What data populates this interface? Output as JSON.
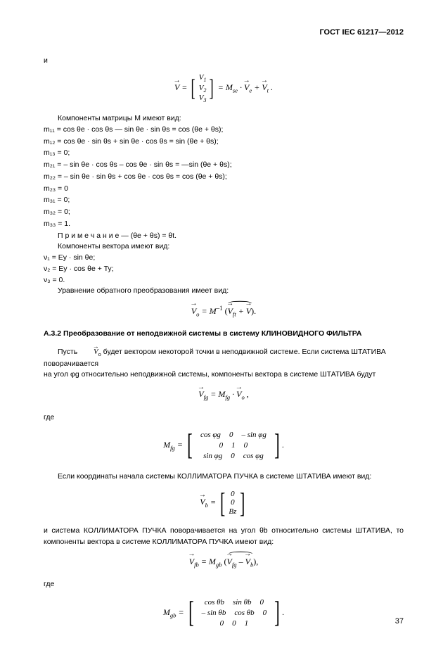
{
  "header": {
    "std": "ГОСТ IEC 61217—2012"
  },
  "intro_and": "и",
  "eq_v": {
    "lhs_var": "V",
    "v1": "V",
    "v1_sub": "1",
    "v2": "V",
    "v2_sub": "2",
    "v3": "V",
    "v3_sub": "3",
    "rhs": " = M",
    "rhs_sub": "se",
    "rhs2": " · ",
    "ve": "V",
    "ve_sub": "e",
    "plus": " + ",
    "vt": "V",
    "vt_sub": "t",
    "dot": " ."
  },
  "matrix_intro": "Компоненты матрицы М имеют вид:",
  "m": {
    "m11": "m₁₁ = cos θe · cos θs — sin θe · sin θs = cos (θe + θs);",
    "m12": "m₁₂ = cos θe · sin θs + sin θe · cos θs = sin (θe + θs);",
    "m13": "m₁₃ = 0;",
    "m21": "m₂₁ = – sin θe · cos θs – cos θe · sin θs = —sin (θe + θs);",
    "m22": "m₂₂ = – sin θe · sin θs + cos θe · cos θs = cos (θe + θs);",
    "m23": "m₂₃ = 0",
    "m31": "m₃₁ = 0;",
    "m32": "m₃₂ = 0;",
    "m33": "m₃₃ = 1."
  },
  "note": "П р и м е ч а н и е — (θe + θs) = θt.",
  "vec_intro": "Компоненты вектора имеют вид:",
  "nu": {
    "n1": "ν₁ = Ey · sin θe;",
    "n2": "ν₂ = Ey · cos θe + Ty;",
    "n3": "ν₃ = 0."
  },
  "inverse_intro": "Уравнение обратного преобразования имеет вид:",
  "eq_inverse": {
    "vo": "V",
    "vo_sub": "o",
    "eq": " = M",
    "exp": "–1",
    "lpar": "(",
    "vft": "V",
    "vft_sub": "ft",
    "plus": " + ",
    "vv": "V",
    "rpar": ")."
  },
  "section_heading": "А.3.2 Преобразование от неподвижной системы в систему КЛИНОВИДНОГО ФИЛЬТРА",
  "para1a": "Пусть ",
  "para1_vec": "V",
  "para1_vec_sub": "o",
  "para1b": " будет вектором некоторой точки в неподвижной системе. Если система ШТАТИВА поворачивается",
  "para1c": "на угол φg относительно неподвижной системы, компоненты вектора в системе ШТАТИВА будут",
  "eq_vfg": {
    "v": "V",
    "v_sub": "fg",
    "eq": " = M",
    "m_sub": "fg",
    "dot": " · ",
    "vo": "V",
    "vo_sub": "o",
    "comma": " ,"
  },
  "where": "где",
  "matrix_mfg": {
    "lhs": "M",
    "lhs_sub": "fg",
    "eq": " = ",
    "r1c1": "cos φg",
    "r1c2": "0",
    "r1c3": "– sin φg",
    "r2c1": "0",
    "r2c2": "1",
    "r2c3": "0",
    "r3c1": "sin φg",
    "r3c2": "0",
    "r3c3": "cos φg",
    "dot": "."
  },
  "para2": "Если координаты начала системы КОЛЛИМАТОРА ПУЧКА в системе ШТАТИВА имеют вид:",
  "eq_vb": {
    "v": "V",
    "v_sub": "b",
    "eq": " = ",
    "r1": "0",
    "r2": "0",
    "r3": "Bz"
  },
  "para3": "и система КОЛЛИМАТОРА ПУЧКА поворачивается на угол θb относительно системы ШТАТИВА, то компоненты вектора в системе КОЛЛИМАТОРА ПУЧКА имеют вид:",
  "eq_vfb": {
    "v": "V",
    "v_sub": "fb",
    "eq": " = M",
    "m_sub": "gb",
    "lpar": "(",
    "vfg": "V",
    "vfg_sub": "fg",
    "minus": " – ",
    "vb": "V",
    "vb_sub": "b",
    "rpar": "),"
  },
  "where2": "где",
  "matrix_mgb": {
    "lhs": "M",
    "lhs_sub": "gb",
    "eq": " = ",
    "r1c1": "cos θb",
    "r1c2": "sin θb",
    "r1c3": "0",
    "r2c1": "– sin θb",
    "r2c2": "cos θb",
    "r2c3": "0",
    "r3c1": "0",
    "r3c2": "0",
    "r3c3": "1",
    "dot": "."
  },
  "page_number": "37"
}
